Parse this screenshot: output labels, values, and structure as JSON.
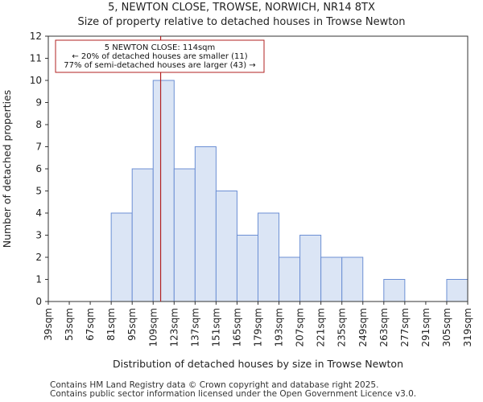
{
  "chart_data": {
    "type": "bar",
    "title": "5, NEWTON CLOSE, TROWSE, NORWICH, NR14 8TX",
    "subtitle": "Size of property relative to detached houses in Trowse Newton",
    "xlabel": "Distribution of detached houses by size in Trowse Newton",
    "ylabel": "Number of detached properties",
    "bin_edges": [
      39,
      53,
      67,
      81,
      95,
      109,
      123,
      137,
      151,
      165,
      179,
      193,
      207,
      221,
      235,
      249,
      263,
      277,
      291,
      305,
      319
    ],
    "tick_labels": [
      "39sqm",
      "53sqm",
      "67sqm",
      "81sqm",
      "95sqm",
      "109sqm",
      "123sqm",
      "137sqm",
      "151sqm",
      "165sqm",
      "179sqm",
      "193sqm",
      "207sqm",
      "221sqm",
      "235sqm",
      "249sqm",
      "263sqm",
      "277sqm",
      "291sqm",
      "305sqm",
      "319sqm"
    ],
    "values": [
      0,
      0,
      0,
      4,
      6,
      10,
      6,
      7,
      5,
      3,
      4,
      2,
      3,
      2,
      2,
      0,
      1,
      0,
      0,
      1
    ],
    "ylim": [
      0,
      12
    ],
    "yticks": [
      0,
      1,
      2,
      3,
      4,
      5,
      6,
      7,
      8,
      9,
      10,
      11,
      12
    ],
    "xlim": [
      39,
      319
    ],
    "grid": false,
    "bar_color": "#dbe5f5",
    "bar_edge_color": "#6c8fd4",
    "marker": {
      "x": 114,
      "color": "#b22222",
      "annotation": [
        "5 NEWTON CLOSE: 114sqm",
        "← 20% of detached houses are smaller (11)",
        "77% of semi-detached houses are larger (43) →"
      ]
    }
  },
  "footer": [
    "Contains HM Land Registry data © Crown copyright and database right 2025.",
    "Contains public sector information licensed under the Open Government Licence v3.0."
  ]
}
